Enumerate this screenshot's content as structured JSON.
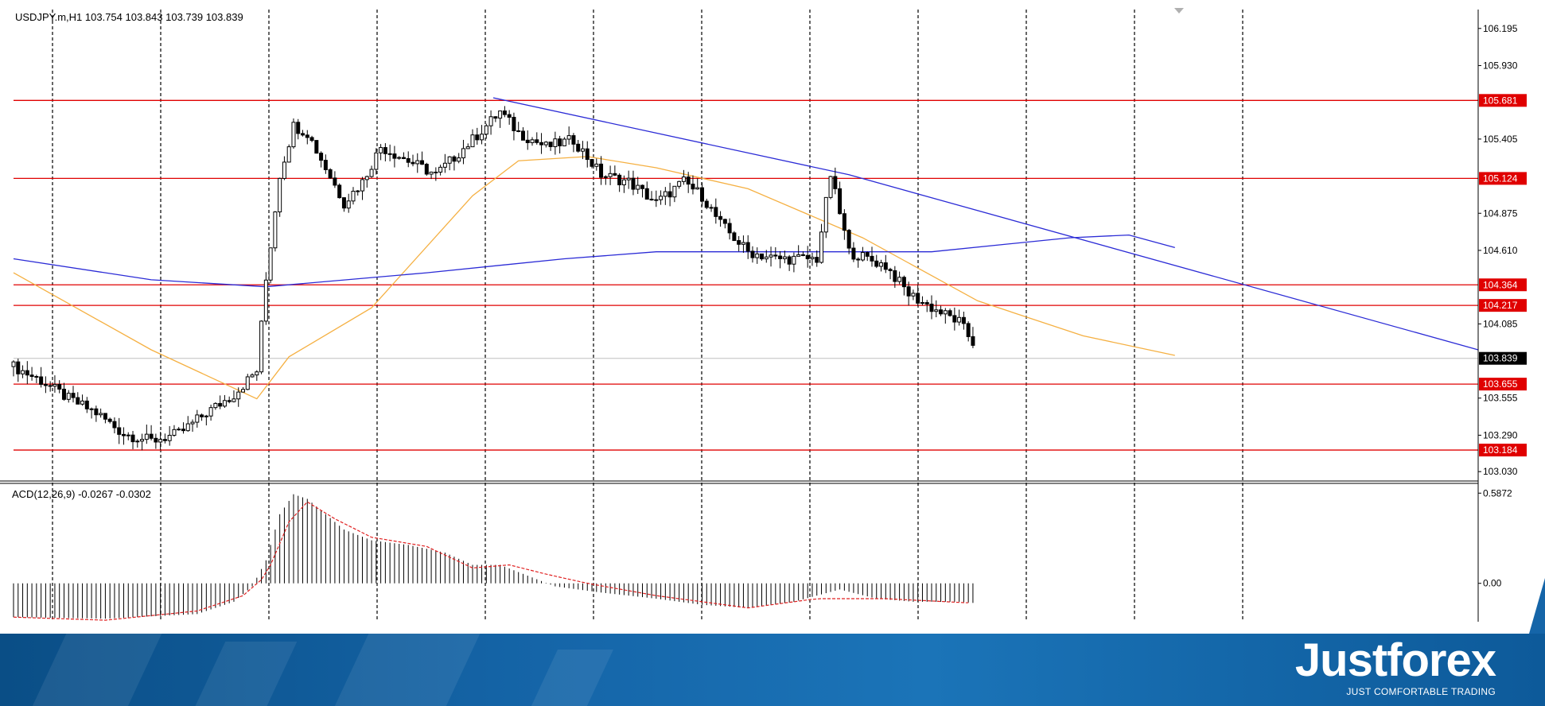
{
  "chart_data": [
    {
      "type": "candlestick",
      "title": "USDJPY.m,H1  103.754 103.843 103.739 103.839",
      "ylim": [
        102.98,
        106.33
      ],
      "y_ticks": [
        "106.195",
        "105.930",
        "105.405",
        "104.875",
        "104.610",
        "104.085",
        "103.555",
        "103.290",
        "103.030"
      ],
      "levels": [
        {
          "value": 105.681,
          "label": "105.681",
          "color": "#e00000"
        },
        {
          "value": 105.124,
          "label": "105.124",
          "color": "#e00000"
        },
        {
          "value": 104.364,
          "label": "104.364",
          "color": "#e00000"
        },
        {
          "value": 104.217,
          "label": "104.217",
          "color": "#e00000"
        },
        {
          "value": 103.655,
          "label": "103.655",
          "color": "#e00000"
        },
        {
          "value": 103.184,
          "label": "103.184",
          "color": "#e00000"
        }
      ],
      "current_price": {
        "value": 103.839,
        "label": "103.839"
      },
      "candle_count": 210,
      "close_path": [
        [
          0,
          103.78
        ],
        [
          6,
          103.68
        ],
        [
          12,
          103.55
        ],
        [
          18,
          103.45
        ],
        [
          24,
          103.3
        ],
        [
          30,
          103.25
        ],
        [
          36,
          103.3
        ],
        [
          42,
          103.45
        ],
        [
          48,
          103.58
        ],
        [
          53,
          103.75
        ],
        [
          55,
          104.4
        ],
        [
          58,
          105.15
        ],
        [
          61,
          105.5
        ],
        [
          64,
          105.45
        ],
        [
          68,
          105.2
        ],
        [
          72,
          104.95
        ],
        [
          76,
          105.1
        ],
        [
          80,
          105.35
        ],
        [
          86,
          105.25
        ],
        [
          92,
          105.15
        ],
        [
          100,
          105.4
        ],
        [
          106,
          105.6
        ],
        [
          110,
          105.45
        ],
        [
          116,
          105.35
        ],
        [
          122,
          105.4
        ],
        [
          128,
          105.15
        ],
        [
          134,
          105.1
        ],
        [
          140,
          104.95
        ],
        [
          146,
          105.1
        ],
        [
          150,
          105.0
        ],
        [
          154,
          104.8
        ],
        [
          160,
          104.6
        ],
        [
          166,
          104.55
        ],
        [
          170,
          104.55
        ],
        [
          175,
          104.55
        ],
        [
          178,
          105.15
        ],
        [
          182,
          104.6
        ],
        [
          190,
          104.5
        ],
        [
          195,
          104.3
        ],
        [
          200,
          104.2
        ],
        [
          206,
          104.1
        ],
        [
          212,
          103.8
        ],
        [
          218,
          103.75
        ],
        [
          224,
          103.8
        ],
        [
          228,
          103.85
        ],
        [
          233,
          103.75
        ],
        [
          238,
          104.0
        ],
        [
          245,
          103.8
        ],
        [
          253,
          103.8
        ]
      ],
      "overlays": [
        {
          "name": "MA orange",
          "color": "#f5b042",
          "points": [
            [
              0,
              104.45
            ],
            [
              30,
              103.9
            ],
            [
              53,
              103.55
            ],
            [
              60,
              103.85
            ],
            [
              78,
              104.2
            ],
            [
              100,
              105.0
            ],
            [
              110,
              105.25
            ],
            [
              125,
              105.28
            ],
            [
              140,
              105.2
            ],
            [
              160,
              105.05
            ],
            [
              185,
              104.7
            ],
            [
              210,
              104.25
            ],
            [
              233,
              104.0
            ],
            [
              253,
              103.86
            ]
          ]
        },
        {
          "name": "MA blue",
          "color": "#2b2bd6",
          "points": [
            [
              0,
              104.55
            ],
            [
              30,
              104.4
            ],
            [
              55,
              104.35
            ],
            [
              90,
              104.45
            ],
            [
              120,
              104.55
            ],
            [
              140,
              104.6
            ],
            [
              170,
              104.6
            ],
            [
              200,
              104.6
            ],
            [
              230,
              104.7
            ],
            [
              243,
              104.72
            ],
            [
              253,
              104.63
            ]
          ]
        },
        {
          "name": "Trendline",
          "color": "#2b2bd6",
          "points": [
            [
              104.5,
              105.7
            ],
            [
              182,
              105.15
            ],
            [
              320,
              103.9
            ]
          ]
        }
      ]
    },
    {
      "type": "histogram",
      "title": "ACD(12,26,9) -0.0267 -0.0302",
      "ylim": [
        -0.25,
        0.63
      ],
      "y_ticks": [
        "0.5872",
        "0.00"
      ],
      "histogram_path": [
        [
          0,
          -0.22
        ],
        [
          20,
          -0.23
        ],
        [
          40,
          -0.2
        ],
        [
          48,
          -0.12
        ],
        [
          52,
          -0.02
        ],
        [
          55,
          0.15
        ],
        [
          58,
          0.45
        ],
        [
          61,
          0.58
        ],
        [
          64,
          0.55
        ],
        [
          68,
          0.45
        ],
        [
          72,
          0.35
        ],
        [
          78,
          0.28
        ],
        [
          86,
          0.25
        ],
        [
          94,
          0.2
        ],
        [
          100,
          0.12
        ],
        [
          106,
          0.12
        ],
        [
          112,
          0.05
        ],
        [
          118,
          -0.02
        ],
        [
          128,
          -0.06
        ],
        [
          140,
          -0.1
        ],
        [
          150,
          -0.14
        ],
        [
          160,
          -0.16
        ],
        [
          170,
          -0.12
        ],
        [
          180,
          -0.04
        ],
        [
          188,
          -0.1
        ],
        [
          196,
          -0.12
        ],
        [
          206,
          -0.12
        ],
        [
          214,
          -0.14
        ],
        [
          222,
          -0.12
        ],
        [
          230,
          -0.06
        ],
        [
          238,
          -0.02
        ],
        [
          246,
          -0.02
        ],
        [
          253,
          -0.03
        ]
      ],
      "signal_path": [
        [
          0,
          -0.22
        ],
        [
          20,
          -0.24
        ],
        [
          40,
          -0.18
        ],
        [
          50,
          -0.08
        ],
        [
          55,
          0.05
        ],
        [
          60,
          0.4
        ],
        [
          64,
          0.53
        ],
        [
          70,
          0.42
        ],
        [
          78,
          0.3
        ],
        [
          90,
          0.24
        ],
        [
          100,
          0.1
        ],
        [
          108,
          0.12
        ],
        [
          116,
          0.06
        ],
        [
          125,
          0.0
        ],
        [
          140,
          -0.08
        ],
        [
          160,
          -0.16
        ],
        [
          175,
          -0.1
        ],
        [
          190,
          -0.1
        ],
        [
          210,
          -0.13
        ],
        [
          225,
          -0.09
        ],
        [
          240,
          0.0
        ],
        [
          253,
          -0.02
        ]
      ],
      "signal_color": "#e02020"
    }
  ],
  "footer": {
    "brand": "Justforex",
    "tagline": "JUST COMFORTABLE TRADING"
  }
}
